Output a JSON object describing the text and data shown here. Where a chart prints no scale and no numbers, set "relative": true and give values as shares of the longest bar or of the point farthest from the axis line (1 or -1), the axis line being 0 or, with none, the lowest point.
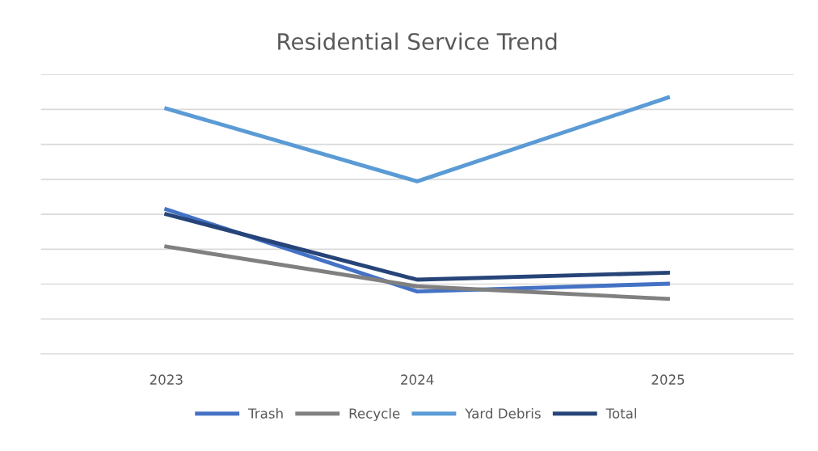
{
  "chart_data": {
    "type": "line",
    "title": "Residential Service Trend",
    "categories": [
      "2023",
      "2024",
      "2025"
    ],
    "relative": true,
    "grid": "y",
    "legend": "bottom",
    "series": [
      {
        "name": "Trash",
        "color": "#4472c4",
        "values": [
          0.564,
          0.244,
          0.274
        ]
      },
      {
        "name": "Recycle",
        "color": "#808080",
        "values": [
          0.419,
          0.264,
          0.215
        ]
      },
      {
        "name": "Yard Debris",
        "color": "#5b9bd5",
        "values": [
          0.957,
          0.673,
          1
        ]
      },
      {
        "name": "Total",
        "color": "#264478",
        "values": [
          0.545,
          0.29,
          0.317
        ]
      }
    ]
  }
}
